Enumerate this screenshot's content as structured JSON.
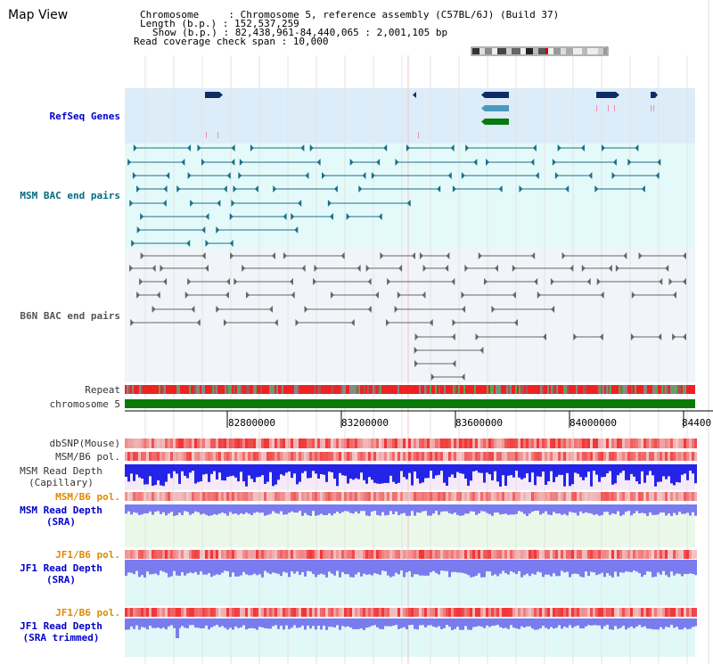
{
  "page": {
    "title": "Map View"
  },
  "header": {
    "chromosome": "Chromosome     : Chromosome 5, reference assembly (C57BL/6J) (Build 37)",
    "length": "Length (b.p.) : 152,537,259",
    "show": "Show (b.p.) : 82,438,961-84,440,065 : 2,001,105 bp",
    "coverage": "Read coverage check span : 10,000"
  },
  "tracks": {
    "refseq": "RefSeq Genes",
    "msm_bac": "MSM BAC end pairs",
    "b6n_bac": "B6N BAC end pairs",
    "repeat": "Repeat",
    "chromosome": "chromosome 5",
    "dbsnp": "dbSNP(Mouse)",
    "msm_pol1": "MSM/B6 pol.",
    "msm_depth_cap_1": "MSM Read Depth",
    "msm_depth_cap_2": "(Capillary)",
    "msm_pol2": "MSM/B6 pol.",
    "msm_depth_sra_1": "MSM Read Depth",
    "msm_depth_sra_2": "(SRA)",
    "jf1_pol1": "JF1/B6 pol.",
    "jf1_depth_1": "JF1 Read Depth",
    "jf1_depth_2": "(SRA)",
    "jf1_pol2": "JF1/B6 pol.",
    "jf1_trim_1": "JF1 Read Depth",
    "jf1_trim_2": "(SRA trimmed)"
  },
  "axis": {
    "ticks": [
      "82800000",
      "83200000",
      "83600000",
      "84000000",
      "84400"
    ]
  },
  "colors": {
    "refseq_bg": "#dcecf8",
    "msm_bg": "#e4fafa",
    "b6n_bg": "#f1f4f8",
    "gene_dark": "#102b66",
    "gene_mid": "#4a9abf",
    "gene_green": "#087a10",
    "msm_pair": "#1a7088",
    "b6n_pair": "#666666",
    "repeat_red": "#ee2222",
    "chrom_green": "#0a7a0a",
    "depth_blue": "#2424e8",
    "depth_lavender": "#7b7bf0"
  }
}
